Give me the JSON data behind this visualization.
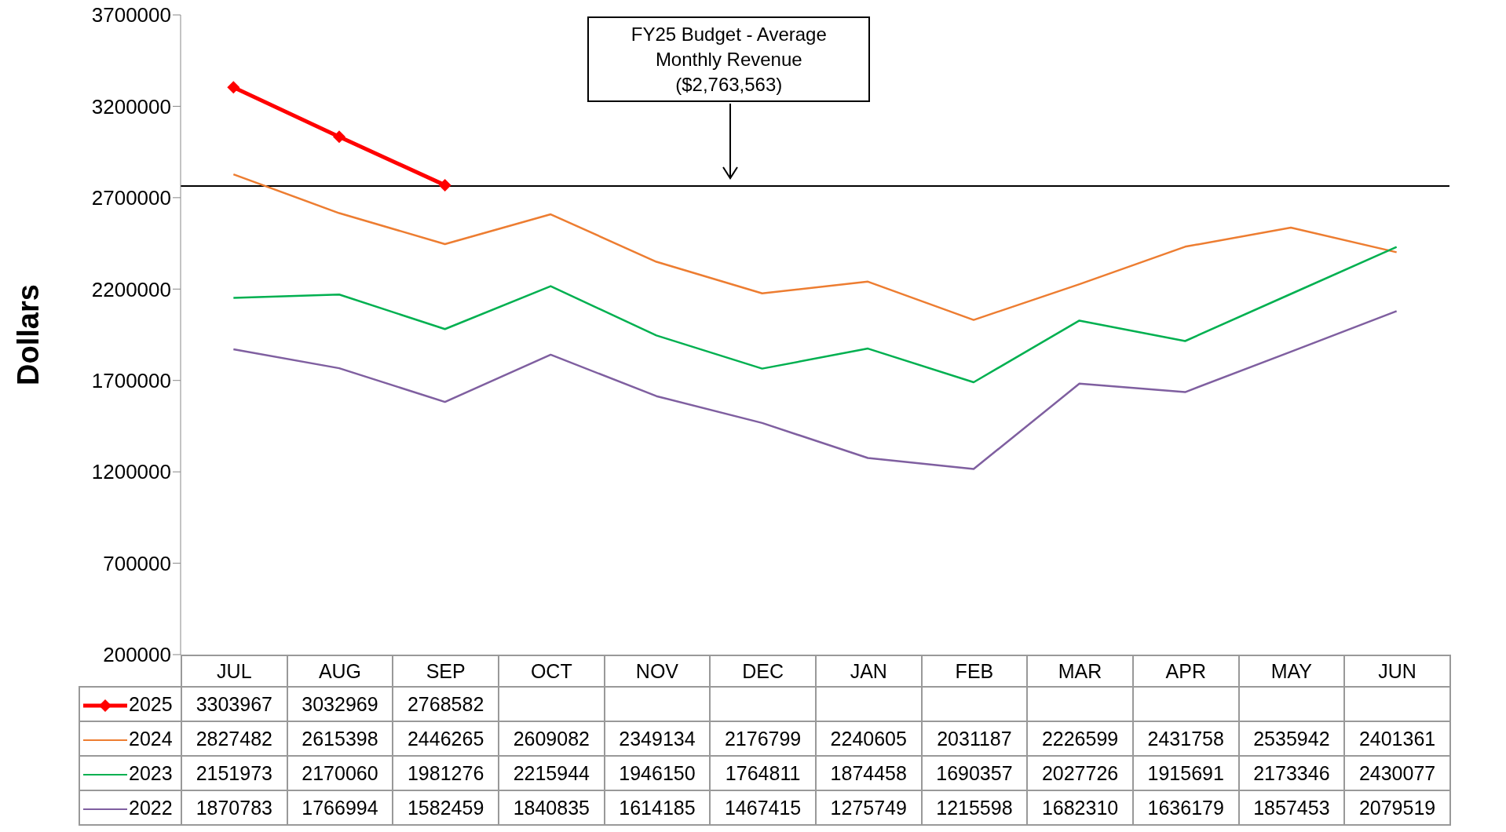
{
  "chart_data": {
    "type": "line",
    "ylabel": "Dollars",
    "categories": [
      "JUL",
      "AUG",
      "SEP",
      "OCT",
      "NOV",
      "DEC",
      "JAN",
      "FEB",
      "MAR",
      "APR",
      "MAY",
      "JUN"
    ],
    "series": [
      {
        "name": "2025",
        "color": "#ff0000",
        "marker": "diamond",
        "values": [
          3303967,
          3032969,
          2768582,
          null,
          null,
          null,
          null,
          null,
          null,
          null,
          null,
          null
        ]
      },
      {
        "name": "2024",
        "color": "#ed7d31",
        "values": [
          2827482,
          2615398,
          2446265,
          2609082,
          2349134,
          2176799,
          2240605,
          2031187,
          2226599,
          2431758,
          2535942,
          2401361
        ]
      },
      {
        "name": "2023",
        "color": "#00b050",
        "values": [
          2151973,
          2170060,
          1981276,
          2215944,
          1946150,
          1764811,
          1874458,
          1690357,
          2027726,
          1915691,
          2173346,
          2430077
        ]
      },
      {
        "name": "2022",
        "color": "#7f5fa0",
        "values": [
          1870783,
          1766994,
          1582459,
          1840835,
          1614185,
          1467415,
          1275749,
          1215598,
          1682310,
          1636179,
          1857453,
          2079519
        ]
      }
    ],
    "ylim": [
      200000,
      3700000
    ],
    "yticks": [
      200000,
      700000,
      1200000,
      1700000,
      2200000,
      2700000,
      3200000,
      3700000
    ],
    "ref_lines": [
      {
        "axis": "y",
        "value": 2763563,
        "color": "#000000"
      }
    ],
    "annotations": [
      "FY25 Budget - Average Monthly Revenue ($2,763,563)"
    ],
    "data_labels": true,
    "legend": "bottom",
    "grid": false
  }
}
